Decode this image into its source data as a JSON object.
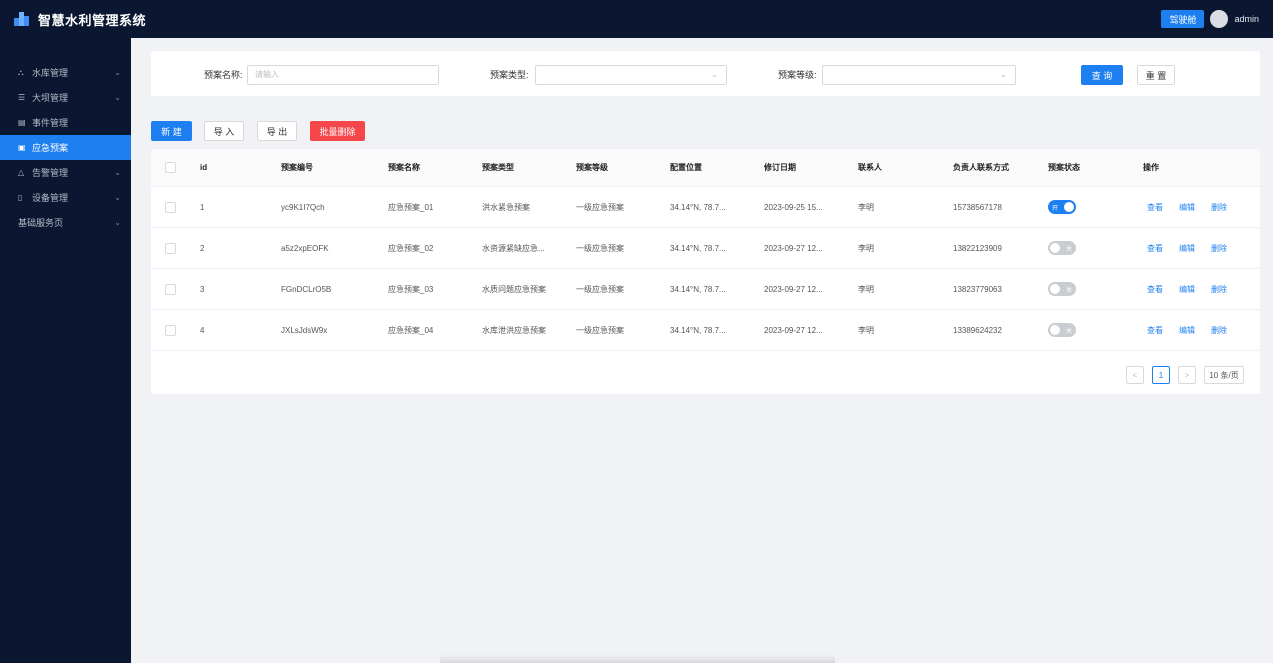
{
  "header": {
    "title": "智慧水利管理系统",
    "button_label": "驾驶舱",
    "username": "admin"
  },
  "sidebar": {
    "items": [
      {
        "label": "水库管理",
        "icon": "reservoir-icon",
        "has_children": true
      },
      {
        "label": "大坝管理",
        "icon": "dam-icon",
        "has_children": true
      },
      {
        "label": "事件管理",
        "icon": "event-icon",
        "has_children": false
      },
      {
        "label": "应急预案",
        "icon": "plan-icon",
        "has_children": false,
        "active": true
      },
      {
        "label": "告警管理",
        "icon": "alarm-icon",
        "has_children": true
      },
      {
        "label": "设备管理",
        "icon": "device-icon",
        "has_children": true
      },
      {
        "label": "基础服务页",
        "icon": "",
        "has_children": true
      }
    ]
  },
  "filter": {
    "name_label": "预案名称:",
    "name_placeholder": "请输入",
    "type_label": "预案类型:",
    "type_value": "",
    "level_label": "预案等级:",
    "level_value": "",
    "search_label": "查 询",
    "reset_label": "重 置"
  },
  "toolbar": {
    "new_label": "新 建",
    "import_label": "导 入",
    "export_label": "导 出",
    "batch_delete_label": "批量删除"
  },
  "table": {
    "columns": [
      "id",
      "预案编号",
      "预案名称",
      "预案类型",
      "预案等级",
      "配置位置",
      "修订日期",
      "联系人",
      "负责人联系方式",
      "预案状态",
      "操作"
    ],
    "rows": [
      {
        "id": "1",
        "code": "yc9K1I7Qch",
        "name": "应急预案_01",
        "type": "洪水紧急预案",
        "level": "一级应急预案",
        "location": "34.14°N, 78.7...",
        "date": "2023-09-25 15...",
        "contact": "李明",
        "phone": "15738567178",
        "status": "开",
        "enabled": true
      },
      {
        "id": "2",
        "code": "a5z2xpEOFK",
        "name": "应急预案_02",
        "type": "水资源紧缺应急...",
        "level": "一级应急预案",
        "location": "34.14°N, 78.7...",
        "date": "2023-09-27 12...",
        "contact": "李明",
        "phone": "13822123909",
        "status": "关",
        "enabled": false
      },
      {
        "id": "3",
        "code": "FGnDCLrO5B",
        "name": "应急预案_03",
        "type": "水质问题应急预案",
        "level": "一级应急预案",
        "location": "34.14°N, 78.7...",
        "date": "2023-09-27 12...",
        "contact": "李明",
        "phone": "13823779063",
        "status": "关",
        "enabled": false
      },
      {
        "id": "4",
        "code": "JXLsJdsW9x",
        "name": "应急预案_04",
        "type": "水库泄洪应急预案",
        "level": "一级应急预案",
        "location": "34.14°N, 78.7...",
        "date": "2023-09-27 12...",
        "contact": "李明",
        "phone": "13389624232",
        "status": "关",
        "enabled": false
      }
    ],
    "actions": [
      "查看",
      "编辑",
      "删除"
    ]
  },
  "pagination": {
    "prev": "<",
    "current": "1",
    "next": ">",
    "page_size": "10 条/页"
  },
  "colors": {
    "header_bg": "#0b1730",
    "accent": "#1e7ff0",
    "danger": "#f5464a"
  }
}
